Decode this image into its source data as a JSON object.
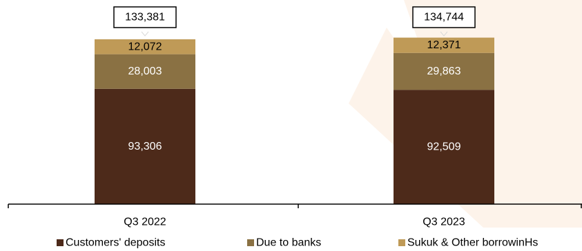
{
  "chart_data": {
    "type": "bar",
    "stacked": true,
    "categories": [
      "Q3 2022",
      "Q3 2023"
    ],
    "series": [
      {
        "name": "Customers' deposits",
        "values": [
          93306,
          92509
        ],
        "labels": [
          "93,306",
          "92,509"
        ],
        "color": "#4d2a1a",
        "label_color": "#ffffff"
      },
      {
        "name": "Due to banks",
        "values": [
          28003,
          29863
        ],
        "labels": [
          "28,003",
          "29,863"
        ],
        "color": "#8a7143",
        "label_color": "#ffffff"
      },
      {
        "name": "Sukuk & Other borrowinHs",
        "values": [
          12072,
          12371
        ],
        "labels": [
          "12,072",
          "12,371"
        ],
        "color": "#bf9a57",
        "label_color": "#000000"
      }
    ],
    "totals": [
      133381,
      134744
    ],
    "total_labels": [
      "133,381",
      "134,744"
    ],
    "ylim": [
      0,
      133381
    ],
    "grid": false,
    "legend_position": "bottom"
  }
}
